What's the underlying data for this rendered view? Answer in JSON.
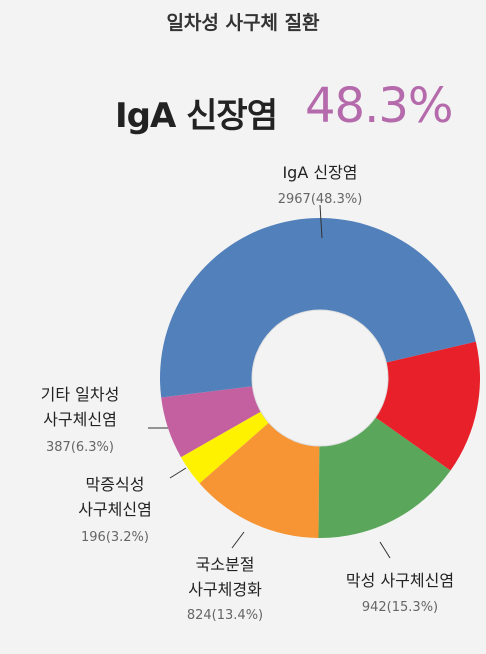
{
  "chart_data": {
    "type": "donut",
    "title": "일차성 사구체 질환",
    "headline": "IgA 신장염",
    "headline_value": "48.3%",
    "categories": [
      "IgA 신장염",
      null,
      "막성 사구체신염",
      "국소분절\n사구체경화",
      "막증식성\n사구체신염",
      "기타 일차성\n사구체신염"
    ],
    "values": [
      2967,
      827,
      942,
      824,
      196,
      387
    ],
    "value_labels": [
      "2967(48.3%)",
      null,
      "942(15.3%)",
      "824(13.4%)",
      "196(3.2%)",
      "387(6.3%)"
    ],
    "colors": [
      "#5180bb",
      "#e8202a",
      "#5aa65a",
      "#f79433",
      "#fff200",
      "#c4609f"
    ]
  }
}
